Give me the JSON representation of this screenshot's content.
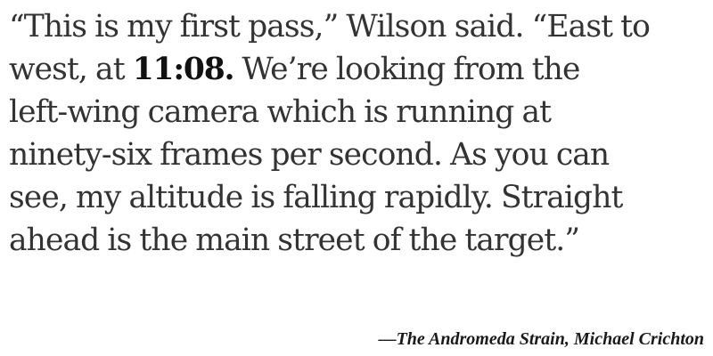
{
  "quote": {
    "line1": "“This is my first pass,” Wilson said. “East to",
    "line2_before": "west, at ",
    "line2_time": "11:08.",
    "line2_after": " We’re looking from the",
    "line3": "left-wing camera which is running at",
    "line4": "ninety-six frames per second. As you can",
    "line5": "see, my altitude is falling rapidly. Straight",
    "line6": "ahead is the main street of the target.”"
  },
  "attribution": {
    "dash": "—",
    "title": "The Andromeda Strain",
    "separator": ", ",
    "author": "Michael Crichton"
  }
}
